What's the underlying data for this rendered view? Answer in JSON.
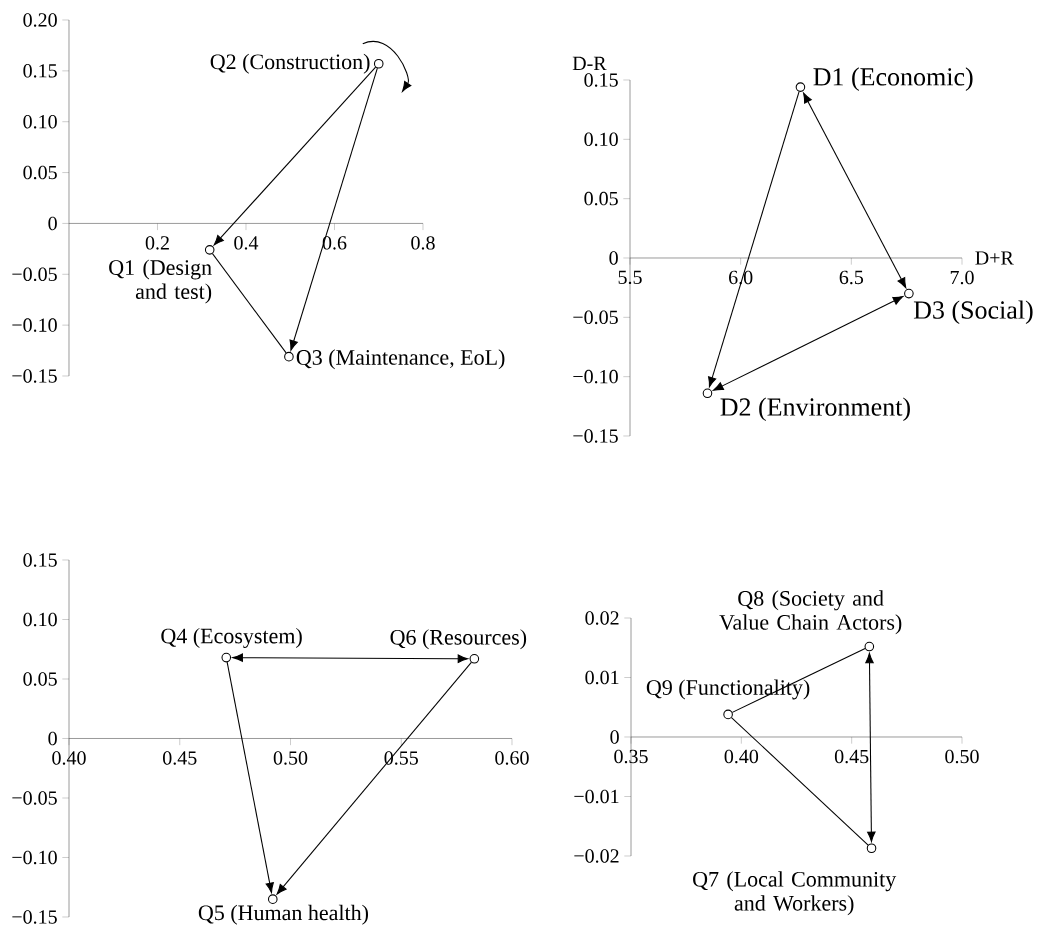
{
  "chart_data": [
    {
      "type": "scatter",
      "marker": "circle",
      "xlim": [
        0,
        0.8
      ],
      "ylim": [
        -0.15,
        0.2
      ],
      "xticks": [
        {
          "value": 0.2,
          "label": "0.2"
        },
        {
          "value": 0.4,
          "label": "0.4"
        },
        {
          "value": 0.6,
          "label": "0.6"
        },
        {
          "value": 0.8,
          "label": "0.8"
        }
      ],
      "yticks": [
        {
          "value": 0.2,
          "label": "0.20"
        },
        {
          "value": 0.15,
          "label": "0.15"
        },
        {
          "value": 0.1,
          "label": "0.10"
        },
        {
          "value": 0.05,
          "label": "0.05"
        },
        {
          "value": 0,
          "label": "0"
        },
        {
          "value": -0.05,
          "label": "−0.05"
        },
        {
          "value": -0.1,
          "label": "−0.10"
        },
        {
          "value": -0.15,
          "label": "−0.15"
        }
      ],
      "series": [
        {
          "color": "#000000",
          "x": [
            0.318,
            0.7,
            0.497
          ],
          "values": [
            -0.026,
            0.157,
            -0.131
          ]
        }
      ],
      "annotations": [
        {
          "text": "Q1 (Design and test)",
          "x": 0.318,
          "y": -0.026
        },
        {
          "text": "Q2 (Construction)",
          "x": 0.7,
          "y": 0.157
        },
        {
          "text": "Q3 (Maintenance, EoL)",
          "x": 0.497,
          "y": -0.131
        }
      ]
    },
    {
      "type": "scatter",
      "marker": "circle",
      "xlabel": "D+R",
      "ylabel": "D-R",
      "xlim": [
        5.5,
        7.0
      ],
      "ylim": [
        -0.15,
        0.15
      ],
      "xticks": [
        {
          "value": 5.5,
          "label": "5.5"
        },
        {
          "value": 6.0,
          "label": "6.0"
        },
        {
          "value": 6.5,
          "label": "6.5"
        },
        {
          "value": 7.0,
          "label": "7.0"
        }
      ],
      "yticks": [
        {
          "value": 0.15,
          "label": "0.15"
        },
        {
          "value": 0.1,
          "label": "0.10"
        },
        {
          "value": 0.05,
          "label": "0.05"
        },
        {
          "value": 0,
          "label": "0"
        },
        {
          "value": -0.05,
          "label": "−0.05"
        },
        {
          "value": -0.1,
          "label": "−0.10"
        },
        {
          "value": -0.15,
          "label": "−0.15"
        }
      ],
      "series": [
        {
          "color": "#000000",
          "x": [
            6.27,
            5.85,
            6.76
          ],
          "values": [
            0.144,
            -0.114,
            -0.03
          ]
        }
      ],
      "annotations": [
        {
          "text": "D1 (Economic)",
          "x": 6.27,
          "y": 0.144
        },
        {
          "text": "D2 (Environment)",
          "x": 5.85,
          "y": -0.114
        },
        {
          "text": "D3 (Social)",
          "x": 6.76,
          "y": -0.03
        }
      ]
    },
    {
      "type": "scatter",
      "marker": "circle",
      "xlim": [
        0.4,
        0.6
      ],
      "ylim": [
        -0.15,
        0.15
      ],
      "xticks": [
        {
          "value": 0.4,
          "label": "0.40"
        },
        {
          "value": 0.45,
          "label": "0.45"
        },
        {
          "value": 0.5,
          "label": "0.50"
        },
        {
          "value": 0.55,
          "label": "0.55"
        },
        {
          "value": 0.6,
          "label": "0.60"
        }
      ],
      "yticks": [
        {
          "value": 0.15,
          "label": "0.15"
        },
        {
          "value": 0.1,
          "label": "0.10"
        },
        {
          "value": 0.05,
          "label": "0.05"
        },
        {
          "value": 0,
          "label": "0"
        },
        {
          "value": -0.05,
          "label": "−0.05"
        },
        {
          "value": -0.1,
          "label": "−0.10"
        },
        {
          "value": -0.15,
          "label": "−0.15"
        }
      ],
      "series": [
        {
          "color": "#000000",
          "x": [
            0.471,
            0.492,
            0.583
          ],
          "values": [
            0.068,
            -0.135,
            0.067
          ]
        }
      ],
      "annotations": [
        {
          "text": "Q4 (Ecosystem)",
          "x": 0.471,
          "y": 0.068
        },
        {
          "text": "Q5 (Human health)",
          "x": 0.492,
          "y": -0.135
        },
        {
          "text": "Q6 (Resources)",
          "x": 0.583,
          "y": 0.067
        }
      ]
    },
    {
      "type": "scatter",
      "marker": "circle",
      "xlim": [
        0.35,
        0.5
      ],
      "ylim": [
        -0.02,
        0.02
      ],
      "xticks": [
        {
          "value": 0.35,
          "label": "0.35"
        },
        {
          "value": 0.4,
          "label": "0.40"
        },
        {
          "value": 0.45,
          "label": "0.45"
        },
        {
          "value": 0.5,
          "label": "0.50"
        }
      ],
      "yticks": [
        {
          "value": 0.02,
          "label": "0.02"
        },
        {
          "value": 0.01,
          "label": "0.01"
        },
        {
          "value": 0,
          "label": "0"
        },
        {
          "value": -0.01,
          "label": "−0.01"
        },
        {
          "value": -0.02,
          "label": "−0.02"
        }
      ],
      "series": [
        {
          "color": "#000000",
          "x": [
            0.459,
            0.458,
            0.394
          ],
          "values": [
            -0.0187,
            0.0152,
            0.0038
          ]
        }
      ],
      "annotations": [
        {
          "text": "Q7 (Local Community and Workers)",
          "x": 0.459,
          "y": -0.0187
        },
        {
          "text": "Q8 (Society and Value Chain Actors)",
          "x": 0.458,
          "y": 0.0152
        },
        {
          "text": "Q9 (Functionality)",
          "x": 0.394,
          "y": 0.0038
        }
      ]
    }
  ]
}
